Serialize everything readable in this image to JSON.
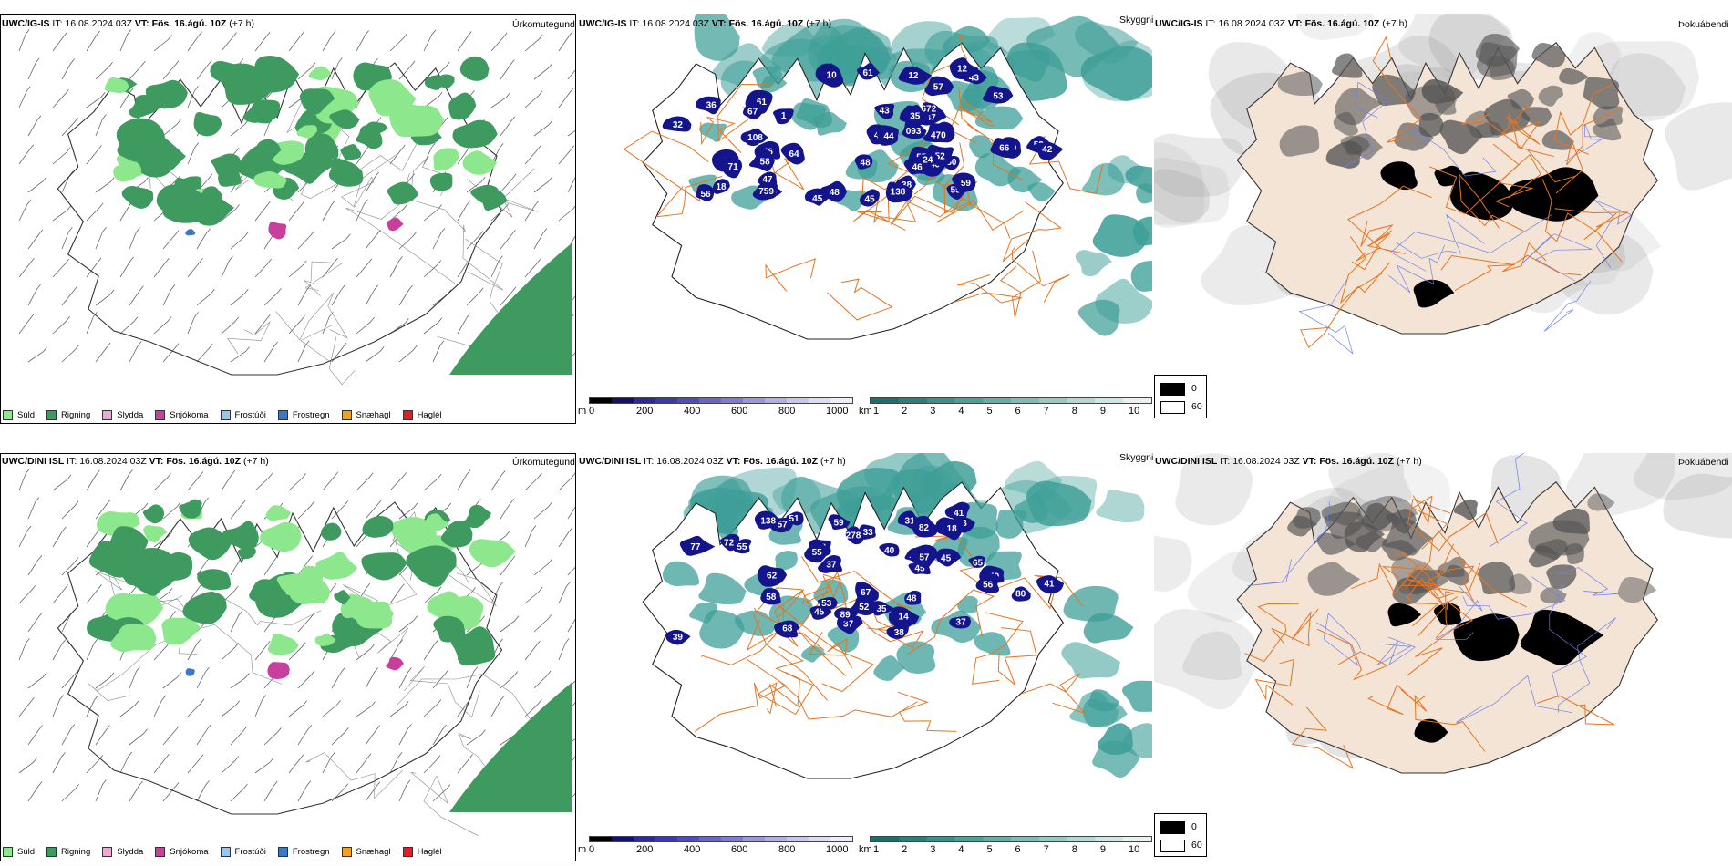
{
  "colors": {
    "rain": "#3e9a5e",
    "drizzle": "#8de88d",
    "snow": "#c83f9e",
    "sleet": "#f2a8d4",
    "freezing_drizzle": "#99c6f0",
    "freezing_rain": "#3d79c2",
    "snow_pellets": "#f0a122",
    "hail": "#e51c23",
    "low_cloud": "#14148c",
    "visibility": "#3f9f98",
    "roads": "#e9731f",
    "land_tint": "#f4e4d6"
  },
  "rows": [
    {
      "model": "UWC/IG-IS",
      "header": {
        "it_label": "IT:",
        "it_value": "16.08.2024 03Z",
        "vt_label": "VT:",
        "vt_value": "Fös. 16.ágú. 10Z",
        "lead": "(+7 h)"
      },
      "precip_title": "Úrkomutegund",
      "vis_title": "Skyggni",
      "fog_title": "Þokuábendi",
      "cloud_labels": [
        "52",
        "43",
        "42",
        "41",
        "43",
        "48",
        "10",
        "18",
        "50",
        "64",
        "61",
        "38",
        "40",
        "36",
        "32",
        "55",
        "29",
        "45",
        "57",
        "43",
        "61",
        "46",
        "56",
        "12",
        "53",
        "48",
        "47",
        "57",
        "67",
        "55",
        "49",
        "71",
        "108",
        "52",
        "59",
        "66",
        "44",
        "45",
        "46",
        "58",
        "12",
        "1",
        "45",
        "47",
        "093",
        "24",
        "672",
        "759",
        "138",
        "494",
        "470",
        "35"
      ]
    },
    {
      "model": "UWC/DINI ISL",
      "header": {
        "it_label": "IT:",
        "it_value": "16.08.2024 03Z",
        "vt_label": "VT:",
        "vt_value": "Fös. 16.ágú. 10Z",
        "lead": "(+7 h)"
      },
      "precip_title": "Úrkomutegund",
      "vis_title": "Skyggni",
      "fog_title": "Þokuábendi",
      "cloud_labels": [
        "49",
        "45",
        "37",
        "31",
        "45",
        "48",
        "57",
        "56",
        "43",
        "33",
        "37",
        "41",
        "59",
        "38",
        "62",
        "55",
        "35",
        "41",
        "46",
        "37",
        "53",
        "51",
        "57",
        "82",
        "278",
        "52",
        "56",
        "45",
        "89",
        "77",
        "33",
        "45",
        "72",
        "55",
        "67",
        "65",
        "58",
        "68",
        "39",
        "80",
        "18",
        "40",
        "138",
        "14"
      ]
    }
  ],
  "precip_legend": [
    {
      "label": "Súld",
      "color": "#8de88d"
    },
    {
      "label": "Rigning",
      "color": "#3e9a5e"
    },
    {
      "label": "Slydda",
      "color": "#f2a8d4"
    },
    {
      "label": "Snjókoma",
      "color": "#c83f9e"
    },
    {
      "label": "Frostúði",
      "color": "#99c6f0"
    },
    {
      "label": "Frostregn",
      "color": "#3d79c2"
    },
    {
      "label": "Snæhagl",
      "color": "#f0a122"
    },
    {
      "label": "Haglél",
      "color": "#e51c23"
    }
  ],
  "cloud_base_scale": {
    "unit": "m",
    "ticks": [
      "0",
      "200",
      "400",
      "600",
      "800",
      "1000"
    ],
    "colors": [
      "#000000",
      "#10106e",
      "#2a2a9a",
      "#3a3ab0",
      "#4d4dbb",
      "#6767c6",
      "#7e7ed0",
      "#9898da",
      "#b0b0e4",
      "#c7c7ed",
      "#dcdcf5",
      "#eeeefb"
    ]
  },
  "visibility_scale": {
    "unit": "km",
    "ticks": [
      "1",
      "2",
      "3",
      "4",
      "5",
      "6",
      "7",
      "8",
      "9",
      "10"
    ],
    "colors": [
      "#1f6e69",
      "#2a807a",
      "#3a918a",
      "#4e9f98",
      "#66ada6",
      "#80bbb5",
      "#9ac9c3",
      "#b4d7d2",
      "#cfe6e2",
      "#e8f3f1"
    ]
  },
  "fog_scale": {
    "labels": [
      "0",
      "60"
    ],
    "colors": [
      "#000000",
      "#ffffff"
    ]
  }
}
